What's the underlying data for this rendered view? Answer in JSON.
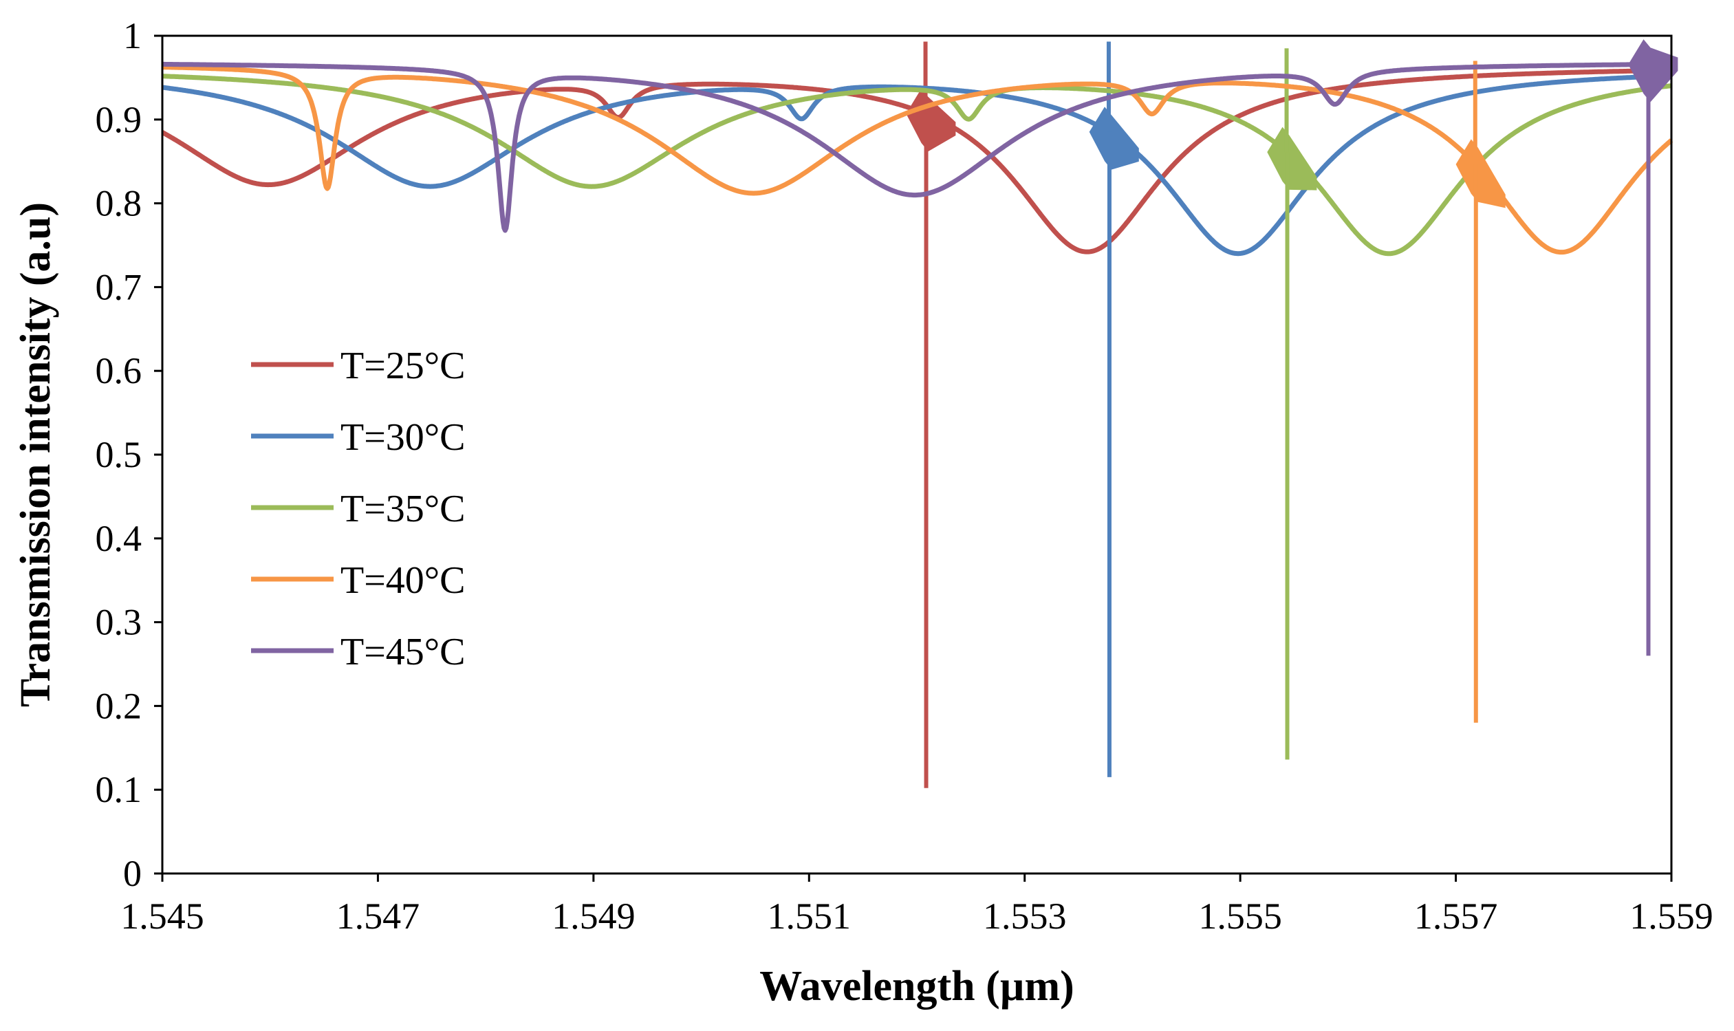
{
  "chart_data": {
    "type": "line",
    "title": "",
    "xlabel": "Wavelength (µm)",
    "ylabel": "Transmission intensity (a.u)",
    "xlim": [
      1.545,
      1.559
    ],
    "ylim": [
      0,
      1
    ],
    "x_ticks": [
      1.545,
      1.547,
      1.549,
      1.551,
      1.553,
      1.555,
      1.557,
      1.559
    ],
    "x_tick_labels": [
      "1.545",
      "1.547",
      "1.549",
      "1.551",
      "1.553",
      "1.555",
      "1.557",
      "1.559"
    ],
    "y_ticks": [
      0,
      0.1,
      0.2,
      0.3,
      0.4,
      0.5,
      0.6,
      0.7,
      0.8,
      0.9,
      1
    ],
    "y_tick_labels": [
      "0",
      "0.1",
      "0.2",
      "0.3",
      "0.4",
      "0.5",
      "0.6",
      "0.7",
      "0.8",
      "0.9",
      "1"
    ],
    "grid": false,
    "legend_position": "center-left",
    "series": [
      {
        "name": "T=25°C",
        "color": "#c0504d",
        "baseline": 0.965,
        "broad_dips": [
          {
            "center": 1.54598,
            "depth": 0.14,
            "width": 0.0011
          },
          {
            "center": 1.55358,
            "depth": 0.22,
            "width": 0.00085
          }
        ],
        "narrow_dips": [
          {
            "center": 1.54923,
            "depth": 0.04,
            "width": 0.00014
          }
        ],
        "sharp_resonance": {
          "center": 1.55208,
          "min": 0.102,
          "max": 0.993
        }
      },
      {
        "name": "T=30°C",
        "color": "#4f81bd",
        "baseline": 0.963,
        "broad_dips": [
          {
            "center": 1.54748,
            "depth": 0.14,
            "width": 0.0011
          },
          {
            "center": 1.55498,
            "depth": 0.22,
            "width": 0.00085
          }
        ],
        "narrow_dips": [
          {
            "center": 1.55093,
            "depth": 0.04,
            "width": 0.00014
          }
        ],
        "sharp_resonance": {
          "center": 1.55378,
          "min": 0.115,
          "max": 0.993
        }
      },
      {
        "name": "T=35°C",
        "color": "#9bbb59",
        "baseline": 0.963,
        "broad_dips": [
          {
            "center": 1.54898,
            "depth": 0.14,
            "width": 0.0011
          },
          {
            "center": 1.55638,
            "depth": 0.22,
            "width": 0.00085
          }
        ],
        "narrow_dips": [
          {
            "center": 1.55248,
            "depth": 0.04,
            "width": 0.00014
          }
        ],
        "sharp_resonance": {
          "center": 1.55543,
          "min": 0.136,
          "max": 0.985
        }
      },
      {
        "name": "T=40°C",
        "color": "#f79646",
        "baseline": 0.97,
        "broad_dips": [
          {
            "center": 1.55048,
            "depth": 0.155,
            "width": 0.0011
          },
          {
            "center": 1.55798,
            "depth": 0.225,
            "width": 0.00085
          }
        ],
        "narrow_dips": [
          {
            "center": 1.54653,
            "depth": 0.14,
            "width": 9e-05
          },
          {
            "center": 1.55418,
            "depth": 0.04,
            "width": 0.00014
          }
        ],
        "sharp_resonance": {
          "center": 1.55718,
          "min": 0.18,
          "max": 0.97
        }
      },
      {
        "name": "T=45°C",
        "color": "#8064a2",
        "baseline": 0.97,
        "broad_dips": [
          {
            "center": 1.55198,
            "depth": 0.16,
            "width": 0.0011
          }
        ],
        "narrow_dips": [
          {
            "center": 1.54818,
            "depth": 0.19,
            "width": 8e-05
          },
          {
            "center": 1.55588,
            "depth": 0.04,
            "width": 0.00014
          }
        ],
        "sharp_resonance": {
          "center": 1.55878,
          "min": 0.26,
          "max": 0.94
        }
      }
    ]
  }
}
